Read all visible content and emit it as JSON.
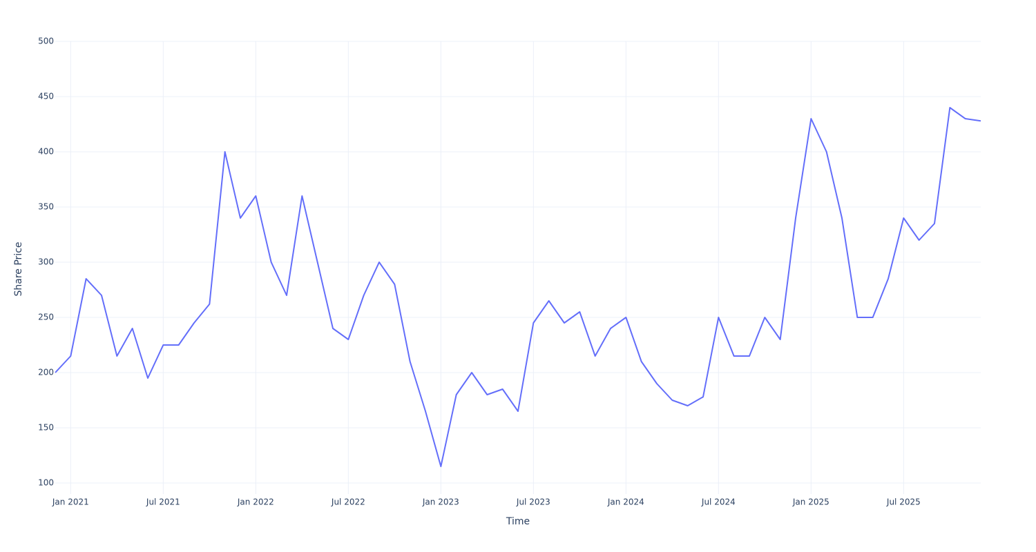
{
  "chart_data": {
    "type": "line",
    "x_title": "Time",
    "y_title": "Share Price",
    "x": [
      "2020-12",
      "2021-01",
      "2021-02",
      "2021-03",
      "2021-04",
      "2021-05",
      "2021-06",
      "2021-07",
      "2021-08",
      "2021-09",
      "2021-10",
      "2021-11",
      "2021-12",
      "2022-01",
      "2022-02",
      "2022-03",
      "2022-04",
      "2022-05",
      "2022-06",
      "2022-07",
      "2022-08",
      "2022-09",
      "2022-10",
      "2022-11",
      "2022-12",
      "2023-01",
      "2023-02",
      "2023-03",
      "2023-04",
      "2023-05",
      "2023-06",
      "2023-07",
      "2023-08",
      "2023-09",
      "2023-10",
      "2023-11",
      "2023-12",
      "2024-01",
      "2024-02",
      "2024-03",
      "2024-04",
      "2024-05",
      "2024-06",
      "2024-07",
      "2024-08",
      "2024-09",
      "2024-10",
      "2024-11",
      "2024-12",
      "2025-01",
      "2025-02",
      "2025-03",
      "2025-04",
      "2025-05",
      "2025-06",
      "2025-07",
      "2025-08",
      "2025-09",
      "2025-10",
      "2025-11",
      "2025-12"
    ],
    "series": [
      {
        "name": "Share Price",
        "color": "#636efa",
        "values": [
          200,
          215,
          285,
          270,
          215,
          240,
          195,
          225,
          225,
          245,
          262,
          400,
          340,
          360,
          300,
          270,
          360,
          300,
          240,
          230,
          270,
          300,
          280,
          210,
          165,
          115,
          180,
          200,
          180,
          185,
          165,
          245,
          265,
          245,
          255,
          215,
          240,
          250,
          210,
          190,
          175,
          170,
          178,
          250,
          215,
          215,
          250,
          230,
          340,
          430,
          400,
          340,
          250,
          250,
          285,
          340,
          320,
          335,
          440,
          430,
          428
        ]
      }
    ],
    "xlim": [
      "2020-12",
      "2025-12"
    ],
    "xticks": [
      {
        "value": "2021-01",
        "label": "Jan 2021"
      },
      {
        "value": "2021-07",
        "label": "Jul 2021"
      },
      {
        "value": "2022-01",
        "label": "Jan 2022"
      },
      {
        "value": "2022-07",
        "label": "Jul 2022"
      },
      {
        "value": "2023-01",
        "label": "Jan 2023"
      },
      {
        "value": "2023-07",
        "label": "Jul 2023"
      },
      {
        "value": "2024-01",
        "label": "Jan 2024"
      },
      {
        "value": "2024-07",
        "label": "Jul 2024"
      },
      {
        "value": "2025-01",
        "label": "Jan 2025"
      },
      {
        "value": "2025-07",
        "label": "Jul 2025"
      }
    ],
    "ylim": [
      90,
      500
    ],
    "yticks": [
      100,
      150,
      200,
      250,
      300,
      350,
      400,
      450,
      500
    ],
    "grid": true
  }
}
